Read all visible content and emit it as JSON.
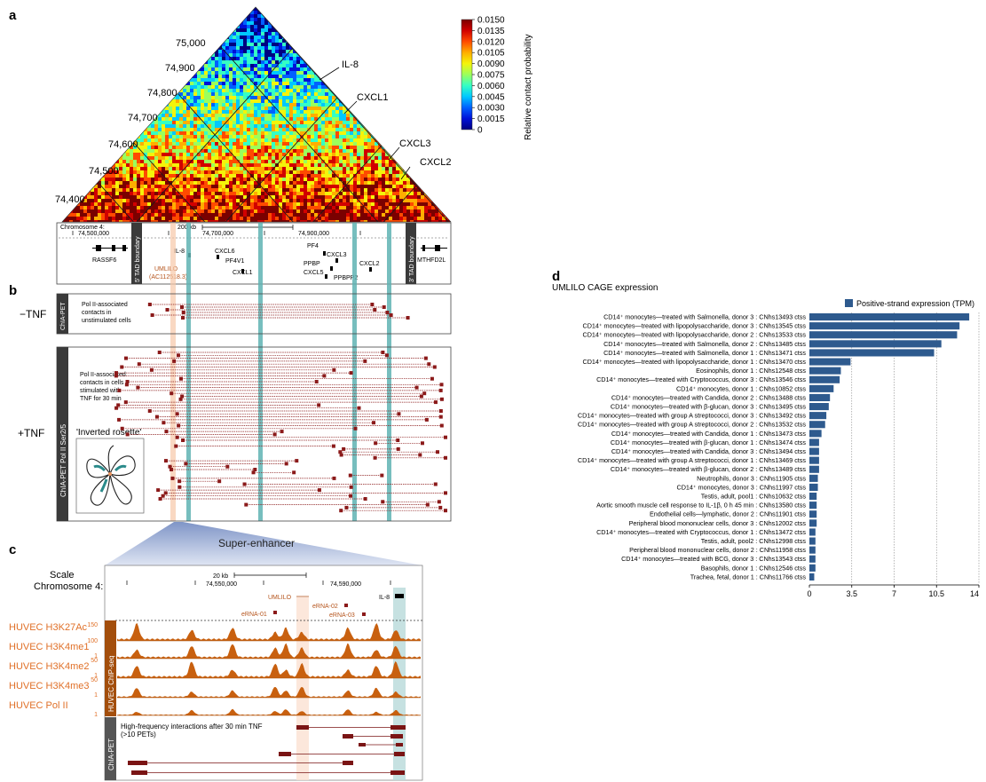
{
  "panel_labels": {
    "a": "a",
    "b": "b",
    "c": "c",
    "d": "d"
  },
  "panel_a": {
    "colorbar": {
      "label": "Relative contact probability",
      "ticks": [
        "0.0150",
        "0.0135",
        "0.0120",
        "0.0105",
        "0.0090",
        "0.0075",
        "0.0060",
        "0.0045",
        "0.0030",
        "0.0015",
        "0"
      ],
      "colors": [
        "#7a0000",
        "#d10000",
        "#ff4a00",
        "#ffae00",
        "#f4f40a",
        "#9bff5c",
        "#35ffc4",
        "#00c8ff",
        "#0060ff",
        "#0010d8",
        "#000080"
      ]
    },
    "axis_labels": [
      "75,000",
      "74,900",
      "74,800",
      "74,700",
      "74,600",
      "74,500",
      "74,400"
    ],
    "gene_callouts": [
      "IL-8",
      "CXCL1",
      "CXCL3",
      "CXCL2"
    ],
    "track": {
      "chromosome": "Chromosome 4:",
      "scale": "200 kb",
      "coords": [
        "74,500,000",
        "74,700,000",
        "74,900,000"
      ],
      "boundary_left": "5' TAD boundary",
      "boundary_right": "3' TAD boundary",
      "genes": [
        "RASSF6",
        "IL-8",
        "CXCL6",
        "PF4V1",
        "CXCL1",
        "PF4",
        "CXCL3",
        "PPBP",
        "CXCL5",
        "CXCL2",
        "PPBPP2",
        "MTHFD2L"
      ],
      "umlilo": "UMLILO",
      "umlilo_id": "(AC112518.3)"
    }
  },
  "panel_b": {
    "minus_tnf": "−TNF",
    "plus_tnf": "+TNF",
    "side_label_top": "ChIA-PET",
    "side_label_bottom": "ChIA-PET Pol II Ser2/5",
    "text_top": [
      "Pol II-associated",
      "contacts in",
      "unstimulated cells"
    ],
    "text_bottom": [
      "Pol II-associated",
      "contacts in cells",
      "stimulated with",
      "TNF for 30 min"
    ],
    "inverted_rosette": "'Inverted rosette'"
  },
  "panel_c": {
    "super_enhancer": "Super-enhancer",
    "scale": "Scale",
    "chromosome": "Chromosome 4:",
    "scale_bar": "20 kb",
    "coords": [
      "74,550,000",
      "74,590,000"
    ],
    "genes": [
      "UMLILO",
      "IL-8",
      "eRNA-01",
      "eRNA-02",
      "eRNA-03"
    ],
    "tracks": [
      {
        "name": "HUVEC H3K27Ac",
        "max": "150",
        "min": ""
      },
      {
        "name": "HUVEC H3K4me1",
        "max": "100",
        "min": "1"
      },
      {
        "name": "HUVEC H3K4me2",
        "max": "50",
        "min": "1"
      },
      {
        "name": "HUVEC H3K4me3",
        "max": "50",
        "min": "1"
      },
      {
        "name": "HUVEC Pol II",
        "max": "",
        "min": "1"
      }
    ],
    "side_label_chip": "HUVEC ChIP-seq",
    "side_label_pet": "ChIA-PET",
    "interactions_text": [
      "High-frequency interactions after 30 min TNF",
      "(>10 PETs)"
    ]
  },
  "chart_data": {
    "type": "bar",
    "title": "UMLILO CAGE expression",
    "orientation": "horizontal",
    "legend": "Positive-strand expression (TPM)",
    "legend_position": "top-right",
    "bar_color": "#2e5a8e",
    "xlim": [
      0,
      14
    ],
    "xticks": [
      "0",
      "3.5",
      "7",
      "10.5",
      "14"
    ],
    "grid": "vertical dotted",
    "categories": [
      "CD14⁺ monocytes—treated with Salmonella, donor 3 : CNhs13493 ctss",
      "CD14⁺ monocytes—treated with lipopolysaccharide, donor 3 : CNhs13545 ctss",
      "CD14⁺ monocytes—treated with lipopolysaccharide, donor 2 : CNhs13533 ctss",
      "CD14⁺ monocytes—treated with Salmonella, donor 2 : CNhs13485 ctss",
      "CD14⁺ monocytes—treated with Salmonella, donor 1 : CNhs13471 ctss",
      "CD14⁺ monocytes—treated with lipopolysaccharide, donor 1 : CNhs13470 ctss",
      "Eosinophils, donor 1 : CNhs12548 ctss",
      "CD14⁺ monocytes—treated with Cryptococcus, donor 3 : CNhs13546 ctss",
      "CD14⁺ monocytes, donor 1 : CNhs10852 ctss",
      "CD14⁺ monocytes—treated with Candida, donor 2 : CNhs13488 ctss",
      "CD14⁺ monocytes—treated with β-glucan, donor 3 : CNhs13495 ctss",
      "CD14⁺ monocytes—treated with group A streptococci, donor 3 : CNhs13492 ctss",
      "CD14⁺ monocytes—treated with group A streptococci, donor 2 : CNhs13532 ctss",
      "CD14⁺ monocytes—treated with Candida, donor 1 : CNhs13473 ctss",
      "CD14⁺ monocytes—treated with β-glucan, donor 1 : CNhs13474 ctss",
      "CD14⁺ monocytes—treated with Candida, donor 3 : CNhs13494 ctss",
      "CD14⁺ monocytes—treated with group A streptococci, donor 1 : CNhs13469 ctss",
      "CD14⁺ monocytes—treated with β-glucan, donor 2 : CNhs13489 ctss",
      "Neutrophils, donor 3 : CNhs11905 ctss",
      "CD14⁺ monocytes, donor 3 : CNhs11997 ctss",
      "Testis, adult, pool1 : CNhs10632 ctss",
      "Aortic smooth muscle cell response to IL-1β, 0 h 45 min : CNhs13580 ctss",
      "Endothelial cells—lymphatic, donor 2 : CNhs11901 ctss",
      "Peripheral blood mononuclear cells, donor 3 : CNhs12002 ctss",
      "CD14⁺ monocytes—treated with Cryptococcus, donor 1 : CNhs13472 ctss",
      "Testis, adult, pool2 : CNhs12998 ctss",
      "Peripheral blood mononuclear cells, donor 2 : CNhs11958 ctss",
      "CD14⁺ monocytes—treated with BCG, donor 3 : CNhs13543 ctss",
      "Basophils, donor 1 : CNhs12546 ctss",
      "Trachea, fetal, donor 1 : CNhs11766 ctss"
    ],
    "values": [
      13.2,
      12.4,
      12.2,
      10.9,
      10.3,
      3.4,
      2.6,
      2.5,
      2.0,
      1.7,
      1.6,
      1.4,
      1.3,
      1.0,
      0.8,
      0.8,
      0.8,
      0.8,
      0.7,
      0.7,
      0.6,
      0.6,
      0.6,
      0.6,
      0.5,
      0.5,
      0.5,
      0.5,
      0.5,
      0.4
    ]
  }
}
